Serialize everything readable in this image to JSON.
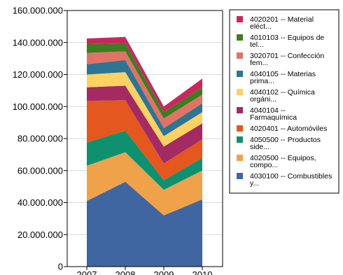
{
  "chart_data": {
    "type": "area",
    "stacked": true,
    "categories": [
      "2007",
      "2008",
      "2009",
      "2010"
    ],
    "ylim": [
      0,
      160000000
    ],
    "yticks": [
      0,
      20000000,
      40000000,
      60000000,
      80000000,
      100000000,
      120000000,
      140000000,
      160000000
    ],
    "ytick_labels": [
      "0",
      "20.000.000",
      "40.000.000",
      "60.000.000",
      "80.000.000",
      "100.000.000",
      "120.000.000",
      "140.000.000",
      "160.000.000"
    ],
    "grid": true,
    "legend_position": "right",
    "series": [
      {
        "name": "4030100 -- Combustibles y...",
        "lines": [
          "4030100 -- Combustibles",
          "y..."
        ],
        "color": "#3f66a0",
        "values": [
          41000000,
          53000000,
          32000000,
          42000000
        ]
      },
      {
        "name": "4020500 -- Equipos, compo...",
        "lines": [
          "4020500 -- Equipos,",
          "compo..."
        ],
        "color": "#f0a24a",
        "values": [
          22000000,
          18500000,
          16000000,
          18000000
        ]
      },
      {
        "name": "4050500 -- Productos side...",
        "lines": [
          "4050500 -- Productos",
          "side..."
        ],
        "color": "#0f9170",
        "values": [
          14500000,
          13500000,
          6000000,
          8000000
        ]
      },
      {
        "name": "4020401 -- Automóviles",
        "lines": [
          "4020401 -- Automóviles"
        ],
        "color": "#e4571e",
        "values": [
          26000000,
          19000000,
          10500000,
          11500000
        ]
      },
      {
        "name": "4040104 -- Farmaquímica",
        "lines": [
          "4040104 --",
          "Farmaquímica"
        ],
        "color": "#a32a62",
        "values": [
          8500000,
          9000000,
          10500000,
          10000000
        ]
      },
      {
        "name": "4040102 -- Química orgáni...",
        "lines": [
          "4040102 -- Química",
          "orgáni..."
        ],
        "color": "#fdd162",
        "values": [
          8000000,
          8500000,
          6500000,
          7000000
        ]
      },
      {
        "name": "4040105 -- Materias prima...",
        "lines": [
          "4040105 -- Materias",
          "prima..."
        ],
        "color": "#2e7594",
        "values": [
          6500000,
          7500000,
          5000000,
          5500000
        ]
      },
      {
        "name": "3020701 -- Confección fem...",
        "lines": [
          "3020701 -- Confección",
          "fem..."
        ],
        "color": "#e07266",
        "values": [
          7000000,
          5500000,
          6000000,
          5500000
        ]
      },
      {
        "name": "4010103 -- Equipos de tel...",
        "lines": [
          "4010103 -- Equipos de",
          "tel..."
        ],
        "color": "#3c7d21",
        "values": [
          5500000,
          5000000,
          4000000,
          4500000
        ]
      },
      {
        "name": "4020201 -- Material eléct...",
        "lines": [
          "4020201 -- Material",
          "eléct..."
        ],
        "color": "#c8285e",
        "values": [
          3500000,
          4000000,
          3500000,
          5500000
        ]
      }
    ]
  }
}
